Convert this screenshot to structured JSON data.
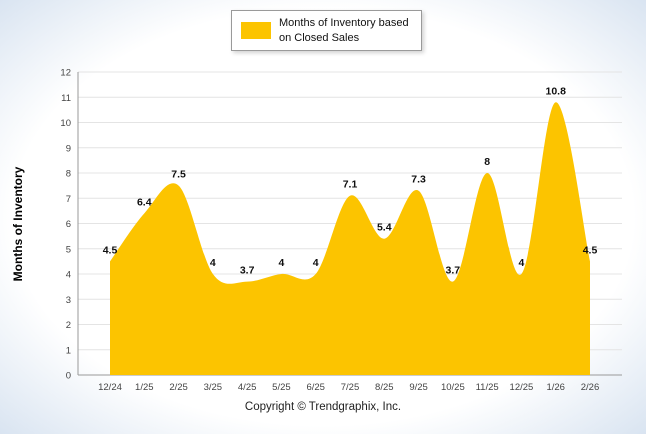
{
  "legend": {
    "lines": [
      "Months of Inventory based",
      "on Closed Sales"
    ]
  },
  "y_axis_title": "Months of Inventory",
  "footer": "Copyright © Trendgraphix, Inc.",
  "colors": {
    "series": "#FCC400",
    "grid": "#e4e4e4",
    "axis": "#999999",
    "tick_text": "#444444",
    "label_text": "#0f0f0f"
  },
  "chart_data": {
    "type": "area",
    "title": "",
    "xlabel": "",
    "ylabel": "Months of Inventory",
    "legend_label": "Months of Inventory based on Closed Sales",
    "legend_position": "top",
    "grid": "horizontal",
    "ylim": [
      0,
      12
    ],
    "ytick_step": 1,
    "categories": [
      "12/24",
      "1/25",
      "2/25",
      "3/25",
      "4/25",
      "5/25",
      "6/25",
      "7/25",
      "8/25",
      "9/25",
      "10/25",
      "11/25",
      "12/25",
      "1/26",
      "2/26"
    ],
    "values": [
      4.5,
      6.4,
      7.5,
      4,
      3.7,
      4,
      4,
      7.1,
      5.4,
      7.3,
      3.7,
      8,
      4,
      10.8,
      4.5
    ]
  }
}
